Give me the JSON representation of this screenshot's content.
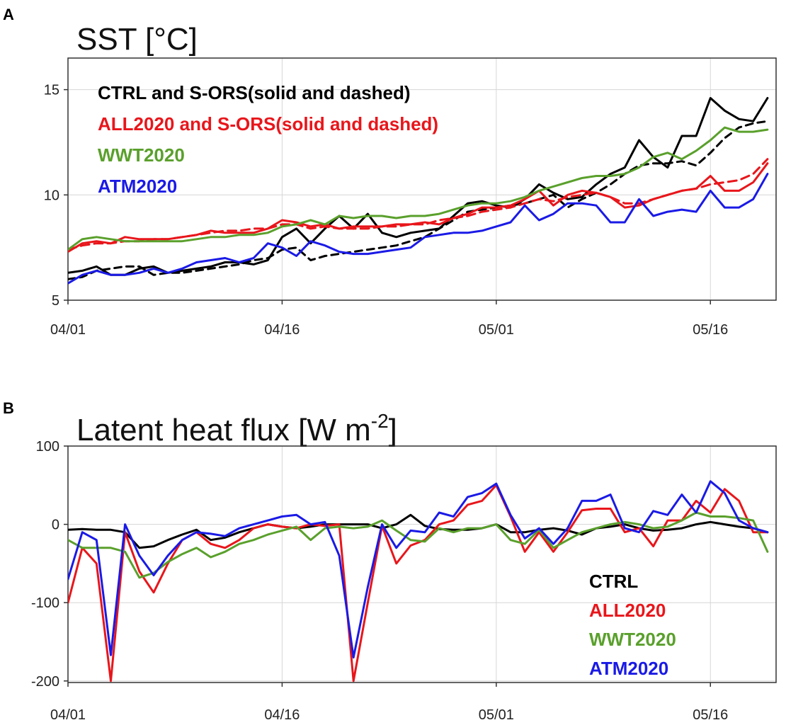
{
  "chart_data": [
    {
      "type": "line",
      "panel": "A",
      "title": "SST [°C]",
      "xlabel": "",
      "ylabel": "",
      "x_tick_labels": [
        "04/01",
        "04/16",
        "05/01",
        "05/16"
      ],
      "y_tick_labels": [
        "5",
        "10",
        "15"
      ],
      "x_tick_days": [
        0,
        15,
        30,
        45
      ],
      "xlim_days": [
        0,
        49.6
      ],
      "ylim": [
        5,
        16.5
      ],
      "y_ticks": [
        5,
        10,
        15
      ],
      "grid": true,
      "legend_position": "top-left",
      "legend": [
        {
          "text": "CTRL and S-ORS(solid and dashed)",
          "color": "#000000"
        },
        {
          "text": "ALL2020 and S-ORS(solid and dashed)",
          "color": "#e8161b"
        },
        {
          "text": "WWT2020",
          "color": "#5aa02c"
        },
        {
          "text": "ATM2020",
          "color": "#1a1ae6"
        }
      ],
      "series": [
        {
          "color": "#000000",
          "dash": "",
          "values": [
            6.3,
            6.4,
            6.6,
            6.2,
            6.2,
            6.5,
            6.6,
            6.3,
            6.4,
            6.5,
            6.6,
            6.8,
            6.8,
            6.7,
            6.9,
            8.0,
            8.4,
            7.7,
            8.4,
            9.0,
            8.4,
            9.1,
            8.2,
            8.0,
            8.2,
            8.3,
            8.4,
            9.0,
            9.6,
            9.7,
            9.5,
            9.4,
            9.8,
            10.5,
            10.1,
            9.8,
            9.9,
            10.5,
            11.0,
            11.3,
            12.6,
            11.8,
            11.3,
            12.8,
            12.8,
            14.6,
            14.0,
            13.6,
            13.5,
            14.6
          ]
        },
        {
          "color": "#000000",
          "dash": "10,7",
          "values": [
            6.0,
            6.1,
            6.4,
            6.5,
            6.6,
            6.6,
            6.2,
            6.3,
            6.3,
            6.4,
            6.5,
            6.6,
            6.7,
            6.9,
            7.0,
            7.4,
            7.5,
            6.9,
            7.1,
            7.2,
            7.3,
            7.4,
            7.5,
            7.6,
            7.8,
            8.0,
            8.4,
            8.8,
            9.2,
            9.3,
            9.4,
            9.5,
            9.6,
            9.8,
            10.0,
            9.4,
            9.8,
            10.1,
            10.5,
            11.0,
            11.4,
            11.5,
            11.5,
            11.6,
            11.4,
            12.0,
            12.7,
            13.2,
            13.4,
            13.5
          ]
        },
        {
          "color": "#e8161b",
          "dash": "",
          "values": [
            7.3,
            7.7,
            7.8,
            7.7,
            8.0,
            7.9,
            7.9,
            7.9,
            8.0,
            8.1,
            8.3,
            8.2,
            8.2,
            8.2,
            8.4,
            8.8,
            8.7,
            8.5,
            8.6,
            8.4,
            8.5,
            8.5,
            8.5,
            8.6,
            8.6,
            8.7,
            8.6,
            8.9,
            9.1,
            9.4,
            9.4,
            9.5,
            9.8,
            10.2,
            9.5,
            10.0,
            10.2,
            10.1,
            9.9,
            9.4,
            9.5,
            9.8,
            10.0,
            10.2,
            10.3,
            10.9,
            10.2,
            10.2,
            10.6,
            11.5
          ]
        },
        {
          "color": "#e8161b",
          "dash": "12,7",
          "values": [
            7.4,
            7.6,
            7.7,
            7.7,
            7.8,
            7.8,
            7.9,
            7.9,
            8.0,
            8.1,
            8.2,
            8.3,
            8.3,
            8.4,
            8.4,
            8.6,
            8.6,
            8.4,
            8.5,
            8.4,
            8.4,
            8.4,
            8.5,
            8.5,
            8.6,
            8.6,
            8.8,
            8.9,
            9.0,
            9.2,
            9.3,
            9.4,
            9.6,
            9.8,
            9.7,
            9.9,
            10.0,
            10.1,
            9.9,
            9.6,
            9.6,
            9.8,
            10.0,
            10.2,
            10.3,
            10.5,
            10.6,
            10.7,
            11.0,
            11.7
          ]
        },
        {
          "color": "#5aa02c",
          "dash": "",
          "values": [
            7.4,
            7.9,
            8.0,
            7.9,
            7.8,
            7.8,
            7.8,
            7.8,
            7.8,
            7.9,
            8.0,
            8.0,
            8.1,
            8.1,
            8.2,
            8.5,
            8.6,
            8.8,
            8.6,
            9.0,
            8.9,
            9.0,
            9.0,
            8.9,
            9.0,
            9.0,
            9.1,
            9.3,
            9.5,
            9.6,
            9.6,
            9.7,
            9.9,
            10.2,
            10.4,
            10.6,
            10.8,
            10.9,
            10.9,
            11.0,
            11.3,
            11.8,
            12.0,
            11.7,
            12.1,
            12.6,
            13.2,
            13.0,
            13.0,
            13.1
          ]
        },
        {
          "color": "#1a1ae6",
          "dash": "",
          "values": [
            5.8,
            6.2,
            6.4,
            6.2,
            6.2,
            6.3,
            6.5,
            6.3,
            6.5,
            6.8,
            6.9,
            7.0,
            6.8,
            7.0,
            7.7,
            7.5,
            7.1,
            7.8,
            7.6,
            7.3,
            7.2,
            7.2,
            7.3,
            7.4,
            7.5,
            8.0,
            8.1,
            8.2,
            8.2,
            8.3,
            8.5,
            8.7,
            9.5,
            8.8,
            9.1,
            9.6,
            9.6,
            9.5,
            8.7,
            8.7,
            9.8,
            9.0,
            9.2,
            9.3,
            9.2,
            10.2,
            9.4,
            9.4,
            9.8,
            11.0
          ]
        }
      ]
    },
    {
      "type": "line",
      "panel": "B",
      "title": "Latent heat flux [W m",
      "title_sup": "-2",
      "title_close": "]",
      "xlabel": "",
      "ylabel": "",
      "x_tick_labels": [
        "04/01",
        "04/16",
        "05/01",
        "05/16"
      ],
      "y_tick_labels": [
        "100",
        "0",
        "-100",
        "-200"
      ],
      "x_tick_days": [
        0,
        15,
        30,
        45
      ],
      "xlim_days": [
        0,
        49.6
      ],
      "ylim": [
        -202,
        100
      ],
      "y_ticks": [
        100,
        0,
        -100,
        -200
      ],
      "grid": true,
      "legend_position": "bottom-right",
      "legend": [
        {
          "text": "CTRL",
          "color": "#000000"
        },
        {
          "text": "ALL2020",
          "color": "#e8161b"
        },
        {
          "text": "WWT2020",
          "color": "#5aa02c"
        },
        {
          "text": "ATM2020",
          "color": "#1a1ae6"
        }
      ],
      "series": [
        {
          "color": "#000000",
          "dash": "",
          "values": [
            -7,
            -6,
            -7,
            -7,
            -10,
            -30,
            -28,
            -20,
            -13,
            -7,
            -20,
            -17,
            -10,
            -5,
            0,
            -3,
            -5,
            -3,
            0,
            0,
            0,
            0,
            -5,
            0,
            12,
            -2,
            -6,
            -7,
            -7,
            -5,
            0,
            -10,
            -10,
            -7,
            -5,
            -8,
            -13,
            -5,
            -3,
            0,
            -5,
            -8,
            -7,
            -5,
            0,
            3,
            0,
            -3,
            -5,
            -10
          ]
        },
        {
          "color": "#e8161b",
          "dash": "",
          "values": [
            -100,
            -30,
            -50,
            -200,
            -10,
            -60,
            -87,
            -50,
            -20,
            -10,
            -25,
            -30,
            -20,
            -5,
            0,
            -3,
            -5,
            0,
            -2,
            0,
            -200,
            -100,
            -2,
            -50,
            -27,
            -20,
            0,
            5,
            25,
            30,
            50,
            10,
            -35,
            -10,
            -35,
            -10,
            18,
            20,
            20,
            -10,
            -5,
            -28,
            5,
            5,
            30,
            15,
            45,
            30,
            -10,
            -10
          ]
        },
        {
          "color": "#5aa02c",
          "dash": "",
          "values": [
            -20,
            -30,
            -30,
            -30,
            -35,
            -68,
            -62,
            -48,
            -38,
            -30,
            -42,
            -35,
            -25,
            -20,
            -13,
            -8,
            -3,
            -20,
            -5,
            -3,
            -5,
            -3,
            5,
            -8,
            -20,
            -22,
            -5,
            -10,
            -5,
            -5,
            0,
            -20,
            -25,
            -7,
            -30,
            -20,
            -10,
            -5,
            0,
            3,
            0,
            -5,
            -3,
            5,
            15,
            10,
            10,
            8,
            5,
            -35
          ]
        },
        {
          "color": "#1a1ae6",
          "dash": "",
          "values": [
            -70,
            -10,
            -20,
            -167,
            0,
            -40,
            -65,
            -40,
            -20,
            -10,
            -12,
            -15,
            -5,
            0,
            5,
            10,
            12,
            0,
            3,
            -40,
            -170,
            -80,
            0,
            -30,
            -8,
            -10,
            15,
            10,
            35,
            40,
            52,
            12,
            -18,
            -5,
            -25,
            -5,
            30,
            30,
            38,
            -5,
            -10,
            17,
            12,
            38,
            15,
            55,
            40,
            5,
            -5,
            -10
          ]
        }
      ]
    }
  ]
}
